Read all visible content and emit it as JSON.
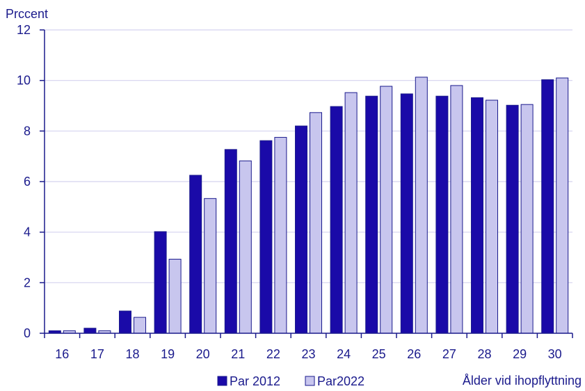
{
  "chart_data": {
    "type": "bar",
    "ylabel": "Prccent",
    "xlabel": "Ålder vid ihopflyttning",
    "categories": [
      "16",
      "17",
      "18",
      "19",
      "20",
      "21",
      "22",
      "23",
      "24",
      "25",
      "26",
      "27",
      "28",
      "29",
      "30"
    ],
    "series": [
      {
        "name": "Par 2012",
        "color": "#1a0aa8",
        "values": [
          0.1,
          0.2,
          0.88,
          4.02,
          6.25,
          7.27,
          7.62,
          8.2,
          8.97,
          9.38,
          9.47,
          9.38,
          9.32,
          9.02,
          10.03
        ]
      },
      {
        "name": "Par2022",
        "color": "#c8c6ee",
        "values": [
          0.1,
          0.1,
          0.63,
          2.93,
          5.33,
          6.82,
          7.75,
          8.73,
          9.52,
          9.77,
          10.13,
          9.8,
          9.22,
          9.05,
          10.1
        ]
      }
    ],
    "yticks": [
      0,
      2,
      4,
      6,
      8,
      10,
      12
    ],
    "ylim": [
      0,
      12
    ],
    "grid": true,
    "legend_position": "bottom"
  },
  "colors": {
    "axis_text": "#1a1a8c",
    "grid": "#d4d2ef",
    "bar_outline": "#1a1a8c"
  }
}
